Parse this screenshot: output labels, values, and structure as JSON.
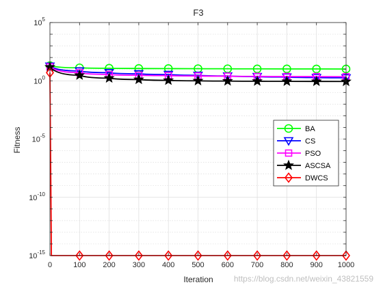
{
  "chart_data": {
    "type": "line",
    "title": "F3",
    "xlabel": "Iteration",
    "ylabel": "Fitness",
    "xlim": [
      0,
      1000
    ],
    "ylim": [
      1e-15,
      100000.0
    ],
    "yscale": "log",
    "xticks": [
      "0",
      "100",
      "200",
      "300",
      "400",
      "500",
      "600",
      "700",
      "800",
      "900",
      "1000"
    ],
    "yticks": [
      {
        "base": "10",
        "exp": "-15",
        "value": 1e-15
      },
      {
        "base": "10",
        "exp": "-10",
        "value": 1e-10
      },
      {
        "base": "10",
        "exp": "-5",
        "value": 1e-05
      },
      {
        "base": "10",
        "exp": "0",
        "value": 1
      },
      {
        "base": "10",
        "exp": "5",
        "value": 100000.0
      }
    ],
    "grid": true,
    "legend_position": "right",
    "x": [
      0,
      100,
      200,
      300,
      400,
      500,
      600,
      700,
      800,
      900,
      1000
    ],
    "series": [
      {
        "name": "BA",
        "color": "#00ff00",
        "marker": "circle",
        "values": [
          20,
          13,
          12,
          11.5,
          11.2,
          11,
          10.8,
          10.6,
          10.5,
          10.4,
          10.3
        ]
      },
      {
        "name": "CS",
        "color": "#0000ff",
        "marker": "triangle-down",
        "values": [
          18,
          7,
          5,
          4,
          3.5,
          3,
          2.6,
          2.3,
          2.1,
          1.9,
          1.8
        ]
      },
      {
        "name": "PSO",
        "color": "#ff00ff",
        "marker": "square",
        "values": [
          16,
          5,
          3.5,
          3,
          2.8,
          2.6,
          2.5,
          2.4,
          2.35,
          2.3,
          2.25
        ]
      },
      {
        "name": "ASCSA",
        "color": "#000000",
        "marker": "star",
        "values": [
          15,
          3,
          1.7,
          1.3,
          1.1,
          1.0,
          0.95,
          0.92,
          0.9,
          0.88,
          0.87
        ]
      },
      {
        "name": "DWCS",
        "color": "#ff0000",
        "marker": "diamond",
        "values": [
          5,
          1e-15,
          1e-15,
          1e-15,
          1e-15,
          1e-15,
          1e-15,
          1e-15,
          1e-15,
          1e-15,
          1e-15
        ]
      }
    ]
  },
  "watermark": "https://blog.csdn.net/weixin_43821559"
}
